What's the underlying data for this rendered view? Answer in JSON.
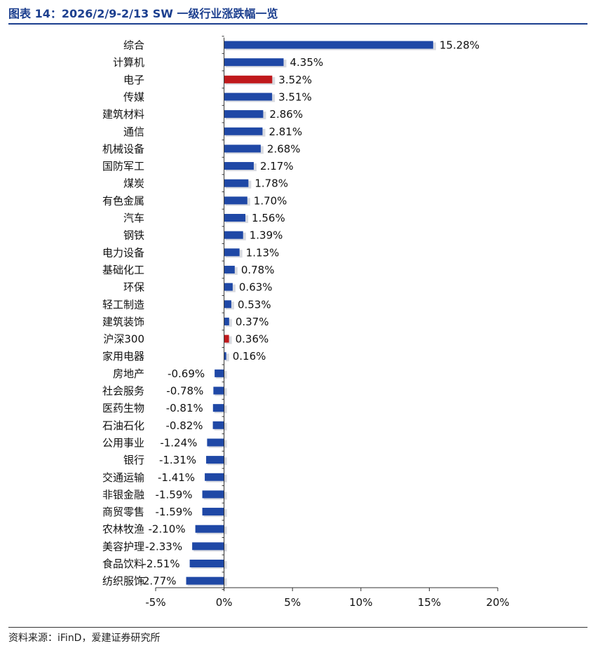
{
  "figure": {
    "title": "图表 14：2026/2/9-2/13 SW 一级行业涨跌幅一览",
    "source": "资料来源：iFinD，爱建证券研究所"
  },
  "colors": {
    "bar": "#1f48a6",
    "highlight": "#c0191c",
    "title": "#1c3f8f",
    "shadow": "#c7cad3"
  },
  "chart_data": {
    "type": "bar",
    "orientation": "horizontal",
    "categories": [
      "综合",
      "计算机",
      "电子",
      "传媒",
      "建筑材料",
      "通信",
      "机械设备",
      "国防军工",
      "煤炭",
      "有色金属",
      "汽车",
      "钢铁",
      "电力设备",
      "基础化工",
      "环保",
      "轻工制造",
      "建筑装饰",
      "沪深300",
      "家用电器",
      "房地产",
      "社会服务",
      "医药生物",
      "石油石化",
      "公用事业",
      "银行",
      "交通运输",
      "非银金融",
      "商贸零售",
      "农林牧渔",
      "美容护理",
      "食品饮料",
      "纺织服饰"
    ],
    "values": [
      15.28,
      4.35,
      3.52,
      3.51,
      2.86,
      2.81,
      2.68,
      2.17,
      1.78,
      1.7,
      1.56,
      1.39,
      1.13,
      0.78,
      0.63,
      0.53,
      0.37,
      0.36,
      0.16,
      -0.69,
      -0.78,
      -0.81,
      -0.82,
      -1.24,
      -1.31,
      -1.41,
      -1.59,
      -1.59,
      -2.1,
      -2.33,
      -2.51,
      -2.77
    ],
    "value_labels": [
      "15.28%",
      "4.35%",
      "3.52%",
      "3.51%",
      "2.86%",
      "2.81%",
      "2.68%",
      "2.17%",
      "1.78%",
      "1.70%",
      "1.56%",
      "1.39%",
      "1.13%",
      "0.78%",
      "0.63%",
      "0.53%",
      "0.37%",
      "0.36%",
      "0.16%",
      "-0.69%",
      "-0.78%",
      "-0.81%",
      "-0.82%",
      "-1.24%",
      "-1.31%",
      "-1.41%",
      "-1.59%",
      "-1.59%",
      "-2.10%",
      "-2.33%",
      "-2.51%",
      "-2.77%"
    ],
    "highlighted": [
      "电子",
      "沪深300"
    ],
    "xlim": [
      -5,
      20
    ],
    "xticks": [
      -5,
      0,
      5,
      10,
      15,
      20
    ],
    "xtick_labels": [
      "-5%",
      "0%",
      "5%",
      "10%",
      "15%",
      "20%"
    ],
    "grid": false,
    "legend": "none"
  }
}
